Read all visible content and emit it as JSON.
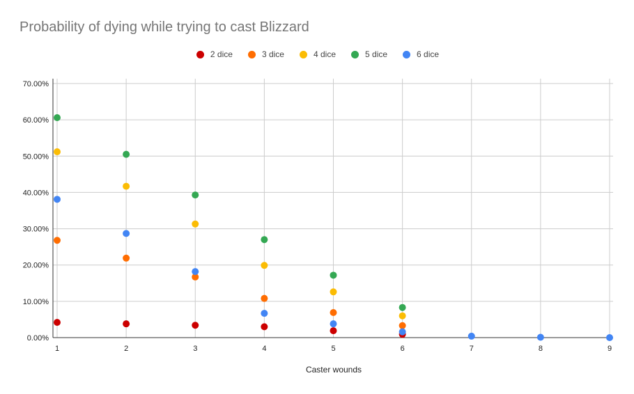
{
  "chart_data": {
    "type": "scatter",
    "title": "Probability of dying while trying to cast Blizzard",
    "xlabel": "Caster wounds",
    "ylabel": "",
    "xlim": [
      1,
      9
    ],
    "ylim": [
      0,
      0.7
    ],
    "x_ticks": [
      "1",
      "2",
      "3",
      "4",
      "5",
      "6",
      "7",
      "8",
      "9"
    ],
    "y_ticks": [
      "0.00%",
      "10.00%",
      "20.00%",
      "30.00%",
      "40.00%",
      "50.00%",
      "60.00%",
      "70.00%"
    ],
    "legend_position": "top",
    "grid": true,
    "series": [
      {
        "name": "2 dice",
        "color": "#cc0000",
        "points": [
          [
            1,
            0.042
          ],
          [
            2,
            0.038
          ],
          [
            3,
            0.034
          ],
          [
            4,
            0.03
          ],
          [
            5,
            0.019
          ],
          [
            6,
            0.009
          ]
        ]
      },
      {
        "name": "3 dice",
        "color": "#ff6d01",
        "points": [
          [
            1,
            0.268
          ],
          [
            2,
            0.219
          ],
          [
            3,
            0.167
          ],
          [
            4,
            0.108
          ],
          [
            5,
            0.069
          ],
          [
            6,
            0.033
          ]
        ]
      },
      {
        "name": "4 dice",
        "color": "#fbbc04",
        "points": [
          [
            1,
            0.512
          ],
          [
            2,
            0.417
          ],
          [
            3,
            0.313
          ],
          [
            4,
            0.199
          ],
          [
            5,
            0.126
          ],
          [
            6,
            0.06
          ]
        ]
      },
      {
        "name": "5 dice",
        "color": "#34a853",
        "points": [
          [
            1,
            0.606
          ],
          [
            2,
            0.505
          ],
          [
            3,
            0.393
          ],
          [
            4,
            0.27
          ],
          [
            5,
            0.172
          ],
          [
            6,
            0.083
          ]
        ]
      },
      {
        "name": "6 dice",
        "color": "#4285f4",
        "points": [
          [
            1,
            0.381
          ],
          [
            2,
            0.287
          ],
          [
            3,
            0.182
          ],
          [
            4,
            0.067
          ],
          [
            5,
            0.038
          ],
          [
            6,
            0.016
          ],
          [
            7,
            0.004
          ],
          [
            8,
            0.001
          ],
          [
            9,
            0.0
          ]
        ]
      }
    ]
  }
}
